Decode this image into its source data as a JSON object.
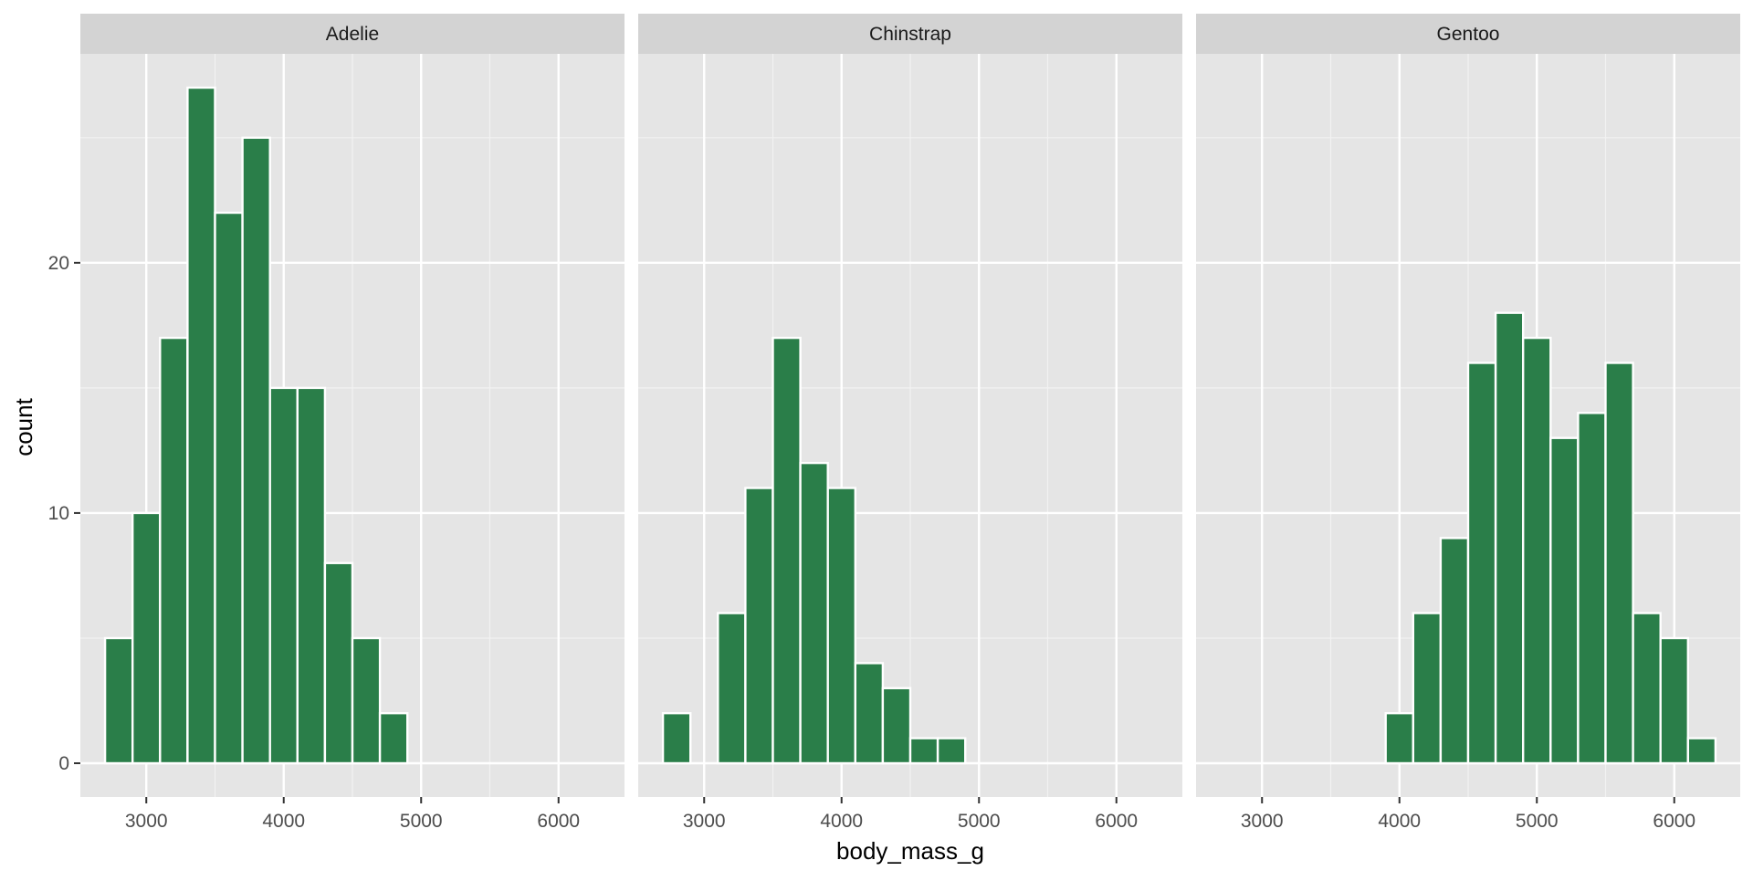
{
  "chart_data": {
    "type": "bar",
    "subtype": "faceted-histogram",
    "xlabel": "body_mass_g",
    "ylabel": "count",
    "x_ticks": [
      3000,
      4000,
      5000,
      6000
    ],
    "y_ticks": [
      0,
      10,
      20
    ],
    "xlim": [
      2520,
      6480
    ],
    "ylim": [
      -1.35,
      28.35
    ],
    "bin_width": 200,
    "bar_color": "#2a7e49",
    "panel_background": "#e5e5e5",
    "strip_background": "#d3d3d3",
    "grid": true,
    "facets": [
      {
        "label": "Adelie",
        "bins": [
          {
            "x0": 2700,
            "x1": 2900,
            "count": 5
          },
          {
            "x0": 2900,
            "x1": 3100,
            "count": 10
          },
          {
            "x0": 3100,
            "x1": 3300,
            "count": 17
          },
          {
            "x0": 3300,
            "x1": 3500,
            "count": 27
          },
          {
            "x0": 3500,
            "x1": 3700,
            "count": 22
          },
          {
            "x0": 3700,
            "x1": 3900,
            "count": 25
          },
          {
            "x0": 3900,
            "x1": 4100,
            "count": 15
          },
          {
            "x0": 4100,
            "x1": 4300,
            "count": 15
          },
          {
            "x0": 4300,
            "x1": 4500,
            "count": 8
          },
          {
            "x0": 4500,
            "x1": 4700,
            "count": 5
          },
          {
            "x0": 4700,
            "x1": 4900,
            "count": 2
          }
        ]
      },
      {
        "label": "Chinstrap",
        "bins": [
          {
            "x0": 2700,
            "x1": 2900,
            "count": 2
          },
          {
            "x0": 3100,
            "x1": 3300,
            "count": 6
          },
          {
            "x0": 3300,
            "x1": 3500,
            "count": 11
          },
          {
            "x0": 3500,
            "x1": 3700,
            "count": 17
          },
          {
            "x0": 3700,
            "x1": 3900,
            "count": 12
          },
          {
            "x0": 3900,
            "x1": 4100,
            "count": 11
          },
          {
            "x0": 4100,
            "x1": 4300,
            "count": 4
          },
          {
            "x0": 4300,
            "x1": 4500,
            "count": 3
          },
          {
            "x0": 4500,
            "x1": 4700,
            "count": 1
          },
          {
            "x0": 4700,
            "x1": 4900,
            "count": 1
          }
        ]
      },
      {
        "label": "Gentoo",
        "bins": [
          {
            "x0": 3900,
            "x1": 4100,
            "count": 2
          },
          {
            "x0": 4100,
            "x1": 4300,
            "count": 6
          },
          {
            "x0": 4300,
            "x1": 4500,
            "count": 9
          },
          {
            "x0": 4500,
            "x1": 4700,
            "count": 16
          },
          {
            "x0": 4700,
            "x1": 4900,
            "count": 18
          },
          {
            "x0": 4900,
            "x1": 5100,
            "count": 17
          },
          {
            "x0": 5100,
            "x1": 5300,
            "count": 13
          },
          {
            "x0": 5300,
            "x1": 5500,
            "count": 14
          },
          {
            "x0": 5500,
            "x1": 5700,
            "count": 16
          },
          {
            "x0": 5700,
            "x1": 5900,
            "count": 6
          },
          {
            "x0": 5900,
            "x1": 6100,
            "count": 5
          },
          {
            "x0": 6100,
            "x1": 6300,
            "count": 1
          }
        ]
      }
    ]
  }
}
